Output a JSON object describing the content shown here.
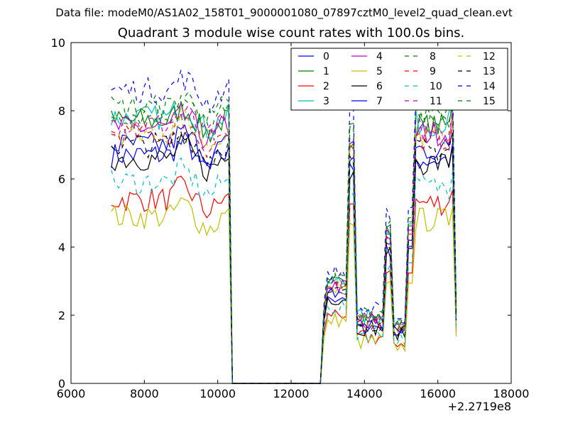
{
  "figure": {
    "suptitle": "Data file: modeM0/AS1A02_158T01_9000001080_07897cztM0_level2_quad_clean.evt",
    "title": "Quadrant 3 module wise count rates with 100.0s bins.",
    "x_offset_label": "+2.2719e8"
  },
  "chart_data": {
    "type": "line",
    "title": "Quadrant 3 module wise count rates with 100.0s bins.",
    "xlabel": "",
    "ylabel": "",
    "xlim": [
      6000,
      18000
    ],
    "ylim": [
      0,
      10
    ],
    "x_ticks": [
      6000,
      8000,
      10000,
      12000,
      14000,
      16000,
      18000
    ],
    "y_ticks": [
      0,
      2,
      4,
      6,
      8,
      10
    ],
    "x_tick_labels": [
      "6000",
      "8000",
      "10000",
      "12000",
      "14000",
      "16000",
      "18000"
    ],
    "y_tick_labels": [
      "0",
      "2",
      "4",
      "6",
      "8",
      "10"
    ],
    "x_offset": "+2.2719e8",
    "grid": false,
    "legend_position": "top-right",
    "legend_columns": 4,
    "x_segments": [
      [
        7100,
        10400
      ],
      [
        12800,
        16500
      ]
    ],
    "series": [
      {
        "name": "0",
        "color": "#0000ff",
        "dash": "solid",
        "level": 6.7
      },
      {
        "name": "1",
        "color": "#007f00",
        "dash": "solid",
        "level": 7.7
      },
      {
        "name": "2",
        "color": "#ff0000",
        "dash": "solid",
        "level": 5.4
      },
      {
        "name": "3",
        "color": "#00bfbf",
        "dash": "solid",
        "level": 7.8
      },
      {
        "name": "4",
        "color": "#bf00bf",
        "dash": "solid",
        "level": 7.5
      },
      {
        "name": "5",
        "color": "#bfbf00",
        "dash": "solid",
        "level": 4.9
      },
      {
        "name": "6",
        "color": "#000000",
        "dash": "solid",
        "level": 6.6
      },
      {
        "name": "7",
        "color": "#0000ff",
        "dash": "solid",
        "level": 7.0
      },
      {
        "name": "8",
        "color": "#007f00",
        "dash": "dashed",
        "level": 7.9
      },
      {
        "name": "9",
        "color": "#ff0000",
        "dash": "dashed",
        "level": 7.3
      },
      {
        "name": "10",
        "color": "#00bfbf",
        "dash": "dashed",
        "level": 5.9
      },
      {
        "name": "11",
        "color": "#bf00bf",
        "dash": "dashed",
        "level": 7.6
      },
      {
        "name": "12",
        "color": "#bfbf00",
        "dash": "dashed",
        "level": 7.4
      },
      {
        "name": "13",
        "color": "#000000",
        "dash": "dashed",
        "level": 7.0
      },
      {
        "name": "14",
        "color": "#0000ff",
        "dash": "dashed",
        "level": 8.6
      },
      {
        "name": "15",
        "color": "#007f00",
        "dash": "dashed",
        "level": 8.1
      }
    ]
  }
}
